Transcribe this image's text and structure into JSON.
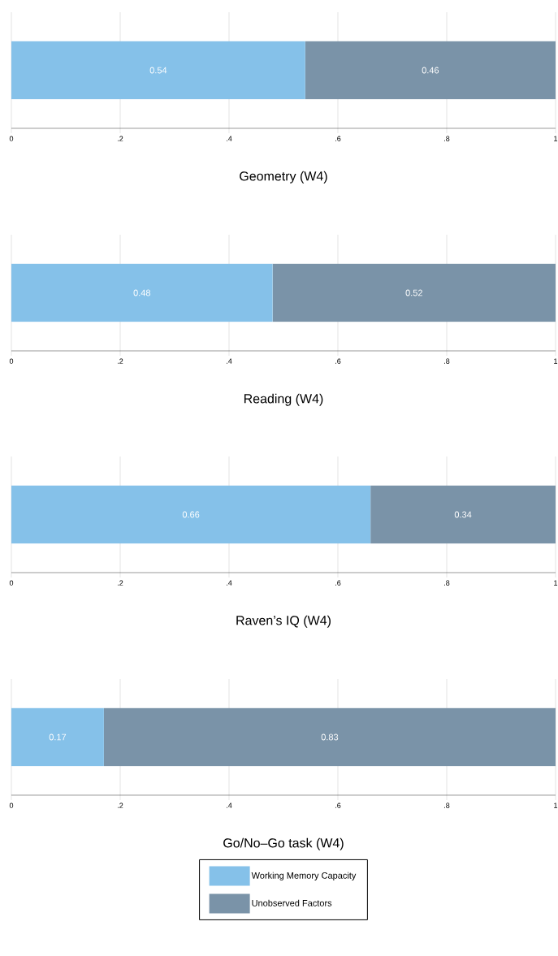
{
  "chart_data": [
    {
      "type": "bar",
      "orientation": "horizontal",
      "stacked": true,
      "xlabel": "Geometry (W4)",
      "categories": [
        null
      ],
      "xlim": [
        0,
        1
      ],
      "xticks": [
        0,
        {
          "value": 0.2,
          "label": ".2"
        },
        {
          "value": 0.4,
          "label": ".4"
        },
        {
          "value": 0.6,
          "label": ".6"
        },
        {
          "value": 0.8,
          "label": ".8"
        },
        1
      ],
      "grid": "x",
      "tick_labels": "x",
      "data_labels": true,
      "series": [
        {
          "color": "#85c1e9",
          "values": [
            0.54
          ]
        },
        {
          "color": "#7a93a8",
          "values": [
            0.46
          ]
        }
      ]
    },
    {
      "type": "bar",
      "orientation": "horizontal",
      "stacked": true,
      "xlabel": "Reading (W4)",
      "categories": [
        null
      ],
      "xlim": [
        0,
        1
      ],
      "xticks": [
        0,
        {
          "value": 0.2,
          "label": ".2"
        },
        {
          "value": 0.4,
          "label": ".4"
        },
        {
          "value": 0.6,
          "label": ".6"
        },
        {
          "value": 0.8,
          "label": ".8"
        },
        1
      ],
      "grid": "x",
      "tick_labels": "x",
      "data_labels": true,
      "series": [
        {
          "color": "#85c1e9",
          "values": [
            0.48
          ]
        },
        {
          "color": "#7a93a8",
          "values": [
            0.52
          ]
        }
      ]
    },
    {
      "type": "bar",
      "orientation": "horizontal",
      "stacked": true,
      "xlabel": "Raven’s IQ (W4)",
      "categories": [
        null
      ],
      "xlim": [
        0,
        1
      ],
      "xticks": [
        0,
        {
          "value": 0.2,
          "label": ".2"
        },
        {
          "value": 0.4,
          "label": ".4"
        },
        {
          "value": 0.6,
          "label": ".6"
        },
        {
          "value": 0.8,
          "label": ".8"
        },
        1
      ],
      "grid": "x",
      "tick_labels": "x",
      "data_labels": true,
      "series": [
        {
          "color": "#85c1e9",
          "values": [
            0.66
          ]
        },
        {
          "color": "#7a93a8",
          "values": [
            0.34
          ]
        }
      ]
    },
    {
      "type": "bar",
      "orientation": "horizontal",
      "stacked": true,
      "xlabel": "Go/No–Go task (W4)",
      "categories": [
        null
      ],
      "xlim": [
        0,
        1
      ],
      "xticks": [
        0,
        {
          "value": 0.2,
          "label": ".2"
        },
        {
          "value": 0.4,
          "label": ".4"
        },
        {
          "value": 0.6,
          "label": ".6"
        },
        {
          "value": 0.8,
          "label": ".8"
        },
        1
      ],
      "grid": "x",
      "tick_labels": "x",
      "data_labels": true,
      "legend": "bottom",
      "series": [
        {
          "name": "Working Memory Capacity",
          "color": "#85c1e9",
          "values": [
            0.17
          ]
        },
        {
          "name": "Unobserved Factors",
          "color": "#7a93a8",
          "values": [
            0.83
          ]
        }
      ]
    }
  ]
}
